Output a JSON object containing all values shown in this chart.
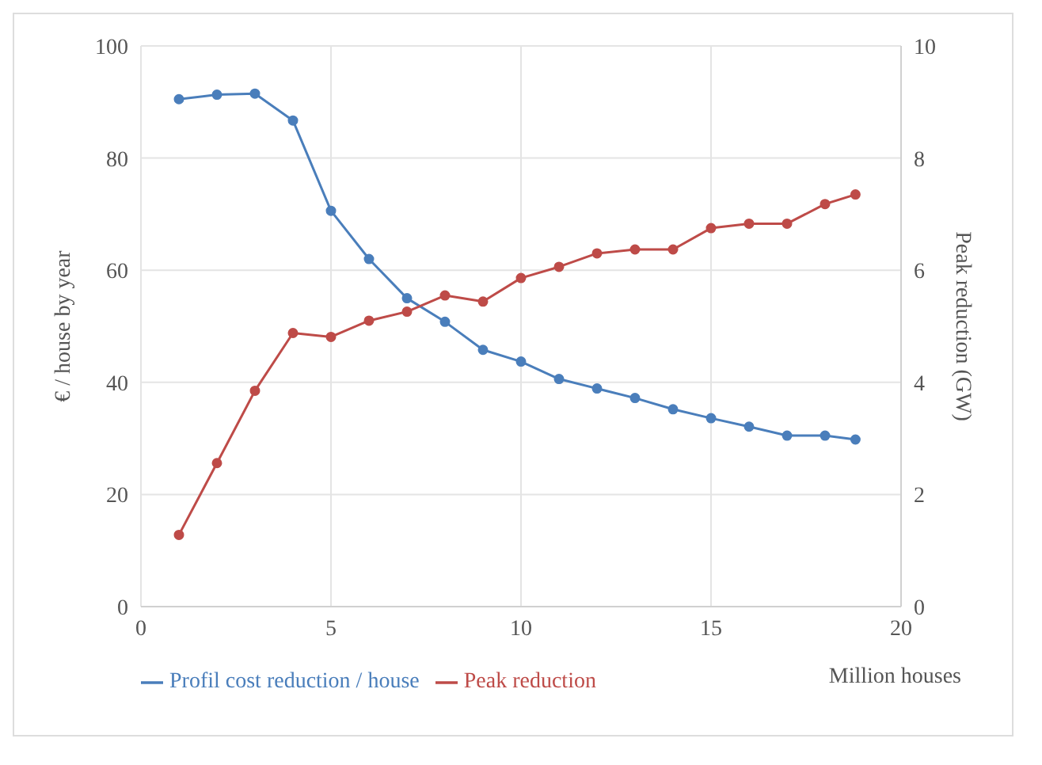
{
  "chart_data": {
    "type": "line",
    "xlabel": "Million houses",
    "ylabel": "€ / house by year",
    "y2label": "Peak reduction (GW)",
    "x": [
      1,
      2,
      3,
      4,
      5,
      6,
      7,
      8,
      9,
      10,
      11,
      12,
      13,
      14,
      15,
      16,
      17,
      18,
      18.8
    ],
    "series": [
      {
        "name": "Profil cost reduction / house",
        "color": "#4a7ebb",
        "values": [
          90.5,
          91.3,
          91.5,
          86.7,
          70.6,
          62,
          55,
          50.8,
          45.8,
          43.7,
          40.6,
          38.9,
          37.2,
          35.2,
          33.6,
          32.1,
          30.5,
          30.5,
          29.8
        ]
      },
      {
        "name": "Peak reduction",
        "color": "#be4b48",
        "axis": "y2",
        "values": [
          1.28,
          2.56,
          3.85,
          4.88,
          4.81,
          5.1,
          5.26,
          5.55,
          5.44,
          5.86,
          6.06,
          6.3,
          6.37,
          6.37,
          6.75,
          6.83,
          6.83,
          7.18,
          7.35
        ]
      }
    ],
    "xlim": [
      0,
      20
    ],
    "xticks": [
      0,
      5,
      10,
      15,
      20
    ],
    "ylim": [
      0,
      100
    ],
    "yticks": [
      0,
      20,
      40,
      60,
      80,
      100
    ],
    "y2lim": [
      0,
      10
    ],
    "y2ticks": [
      0,
      2,
      4,
      6,
      8,
      10
    ],
    "grid": true,
    "legend": "bottom",
    "marker": "circle",
    "line_style": "solid"
  }
}
